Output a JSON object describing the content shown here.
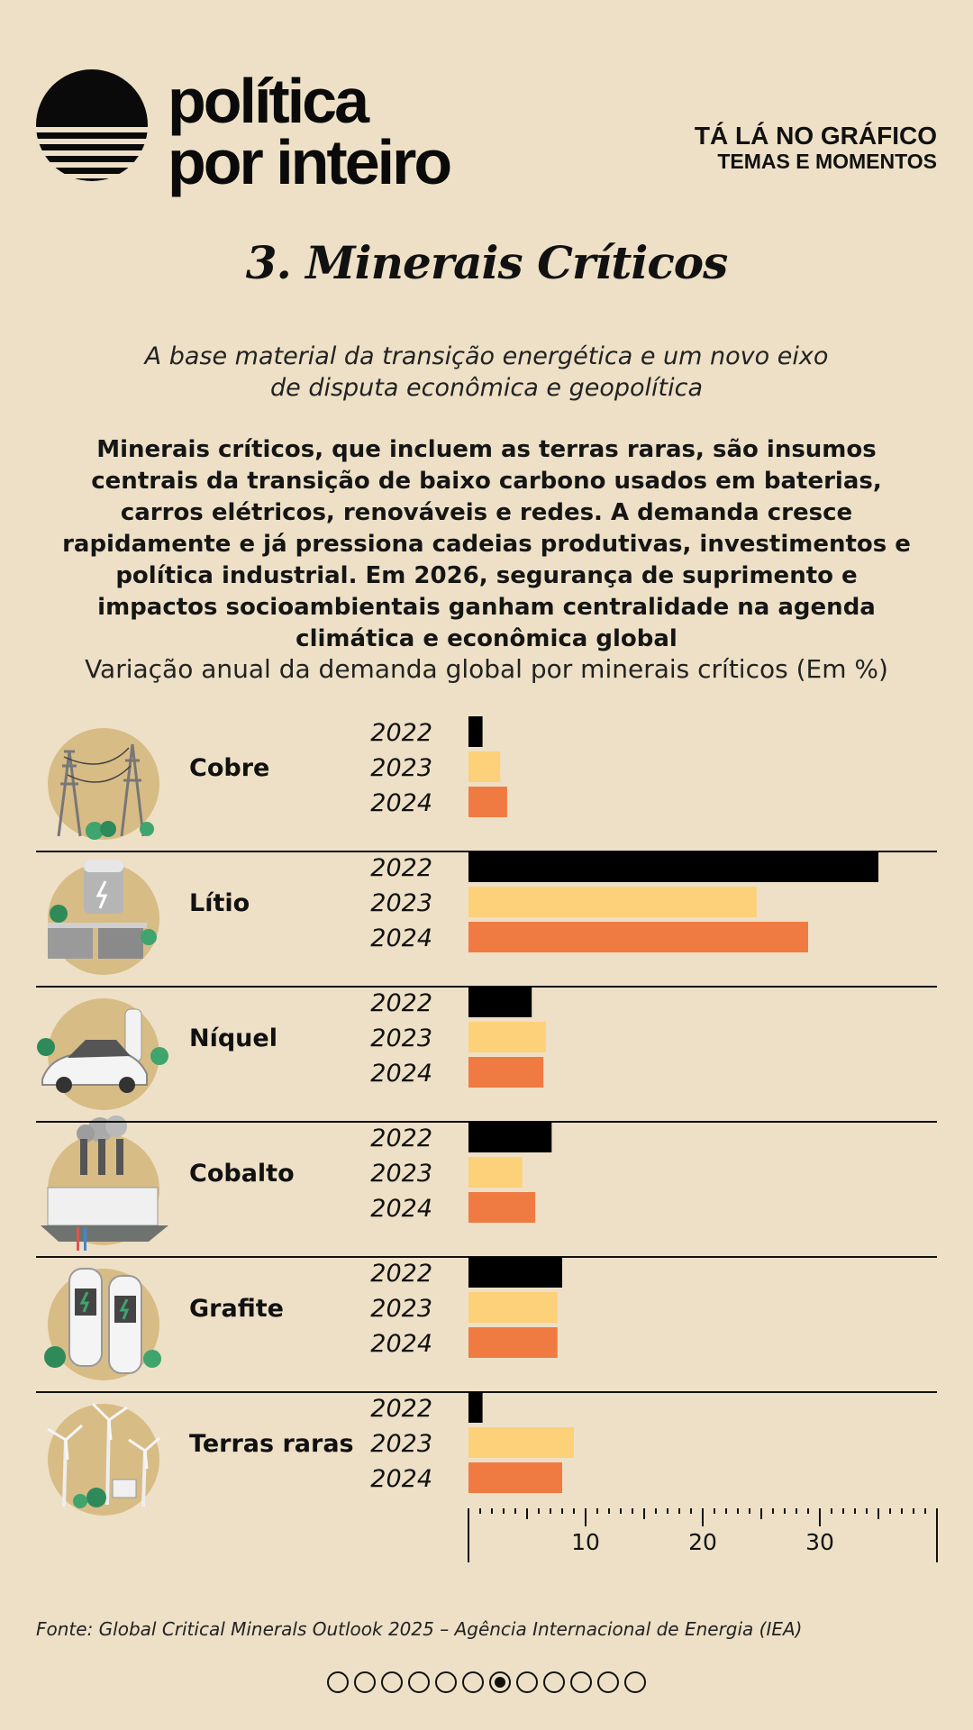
{
  "header": {
    "brand_line1": "política",
    "brand_line2": "por inteiro",
    "series_title": "TÁ LÁ NO GRÁFICO",
    "series_subtitle": "TEMAS E MOMENTOS"
  },
  "title": "3. Minerais Críticos",
  "subtitle": "A base material da transição energética e um novo eixo de disputa econômica e geopolítica",
  "body": "Minerais críticos, que incluem as terras raras, são insumos centrais da transição de baixo carbono usados em baterias, carros elétricos, renováveis e redes. A demanda cresce rapidamente e já pressiona cadeias produtivas, investimentos e política industrial. Em 2026, segurança de suprimento e impactos socioambientais ganham centralidade na agenda climática e econômica global",
  "colors": {
    "background": "#ede0c6",
    "series_2022": "#000000",
    "series_2023": "#fdd07a",
    "series_2024": "#ef7b42",
    "icon_circle": "#d8bc85"
  },
  "chart_data": {
    "type": "bar",
    "orientation": "horizontal",
    "title": "Variação anual da demanda global por minerais críticos (Em %)",
    "categories": [
      "Cobre",
      "Lítio",
      "Níquel",
      "Cobalto",
      "Grafite",
      "Terras raras"
    ],
    "category_icons": [
      "power-lines-icon",
      "battery-storage-icon",
      "electric-car-charger-icon",
      "factory-icon",
      "charging-stations-icon",
      "wind-turbines-icon"
    ],
    "series": [
      {
        "name": "2022",
        "values": [
          1.2,
          35,
          5.4,
          7.1,
          8,
          1.2
        ]
      },
      {
        "name": "2023",
        "values": [
          2.7,
          24.6,
          6.6,
          4.6,
          7.6,
          9
        ]
      },
      {
        "name": "2024",
        "values": [
          3.3,
          29,
          6.4,
          5.7,
          7.6,
          8
        ]
      }
    ],
    "xlim": [
      0,
      40
    ],
    "xticks": [
      10,
      20,
      30
    ],
    "xlabel": "",
    "ylabel": "",
    "legend": "none (years shown inline)"
  },
  "source": "Fonte: Global Critical Minerals Outlook 2025 – Agência Internacional de Energia (IEA)",
  "pagination": {
    "total": 12,
    "current": 7
  }
}
